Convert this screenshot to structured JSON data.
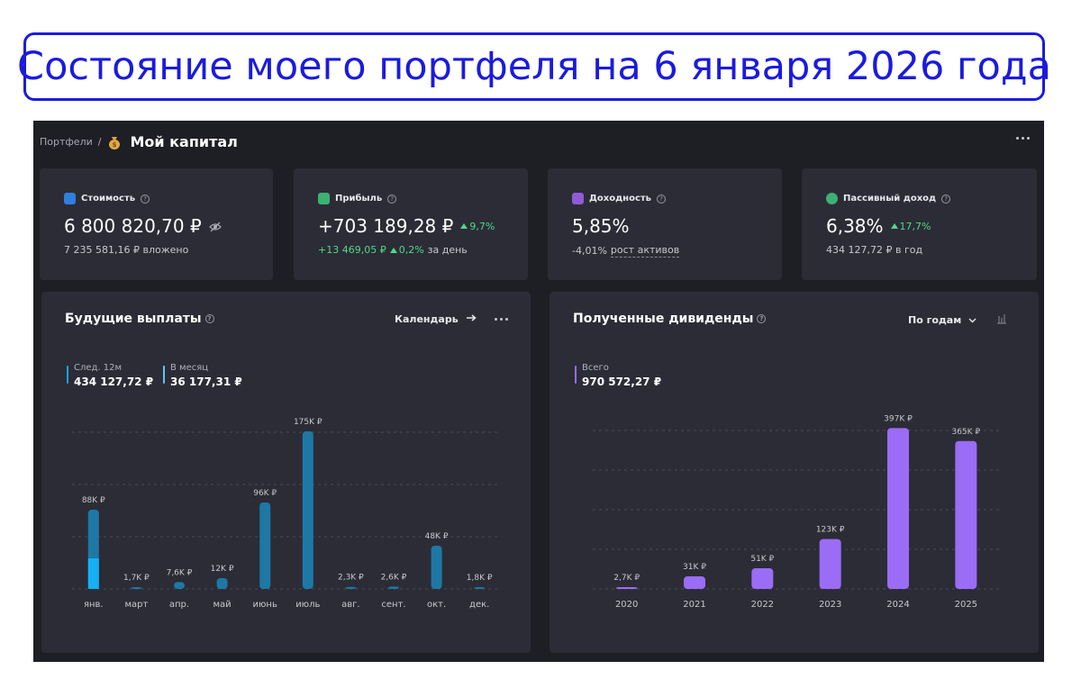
{
  "banner": {
    "text": "Состояние моего портфеля на 6 января 2026 года"
  },
  "header": {
    "breadcrumb_link": "Портфели",
    "breadcrumb_sep": "/",
    "title": "Мой капитал",
    "title_icon": "money-bag-icon"
  },
  "cards": [
    {
      "label": "Стоимость",
      "icon": "wallet-icon",
      "icon_color": "#2f7fe0",
      "value": "6 800 820,70 ₽",
      "sub": "7 235 581,16 ₽ вложено"
    },
    {
      "label": "Прибыль",
      "icon": "chart-up-icon",
      "icon_color": "#3bb273",
      "value": "+703 189,28 ₽",
      "value_change": "9,7%",
      "sub_value": "+13 469,05 ₽",
      "sub_change": "0,2%",
      "sub_suffix": "за день"
    },
    {
      "label": "Доходность",
      "icon": "calendar-icon",
      "icon_color": "#8e5bd8",
      "value": "5,85%",
      "sub_value": "-4,01%",
      "sub_suffix": "рост активов"
    },
    {
      "label": "Пассивный доход",
      "icon": "piggy-bank-icon",
      "icon_color": "#3bb273",
      "value": "6,38%",
      "value_change": "17,7%",
      "sub": "434 127,72 ₽ в год"
    }
  ],
  "future_payments": {
    "title": "Будущие выплаты",
    "calendar_link": "Календарь",
    "legend": [
      {
        "label": "След. 12м",
        "value": "434 127,72 ₽",
        "color": "#1aa3f0"
      },
      {
        "label": "В месяц",
        "value": "36 177,31 ₽",
        "color": "#5ec6f0"
      }
    ]
  },
  "dividends": {
    "title": "Полученные дивиденды",
    "period_select": "По годам",
    "legend": [
      {
        "label": "Всего",
        "value": "970 572,27 ₽",
        "color": "#9b6cf5"
      }
    ]
  },
  "chart_data": [
    {
      "type": "bar",
      "title": "Будущие выплаты",
      "categories": [
        "янв.",
        "март",
        "апр.",
        "май",
        "июнь",
        "июль",
        "авг.",
        "сент.",
        "окт.",
        "дек."
      ],
      "values": [
        88000,
        1700,
        7600,
        12000,
        96000,
        175000,
        2300,
        2600,
        48000,
        1800
      ],
      "labels": [
        "88K ₽",
        "1,7K ₽",
        "7,6K ₽",
        "12K ₽",
        "96K ₽",
        "175K ₽",
        "2,3K ₽",
        "2,6K ₽",
        "48K ₽",
        "1,8K ₽"
      ],
      "highlight": {
        "index": 0,
        "value": 34000
      },
      "ylim": [
        0,
        180000
      ],
      "grid": true,
      "color": "#1e78a6",
      "highlight_color": "#14b0f5"
    },
    {
      "type": "bar",
      "title": "Полученные дивиденды",
      "categories": [
        "2020",
        "2021",
        "2022",
        "2023",
        "2024",
        "2025"
      ],
      "values": [
        2700,
        31000,
        51000,
        123000,
        397000,
        365000
      ],
      "labels": [
        "2,7K ₽",
        "31K ₽",
        "51K ₽",
        "123K ₽",
        "397K ₽",
        "365K ₽"
      ],
      "ylim": [
        0,
        400000
      ],
      "grid": true,
      "color": "#9b6cf5"
    }
  ]
}
